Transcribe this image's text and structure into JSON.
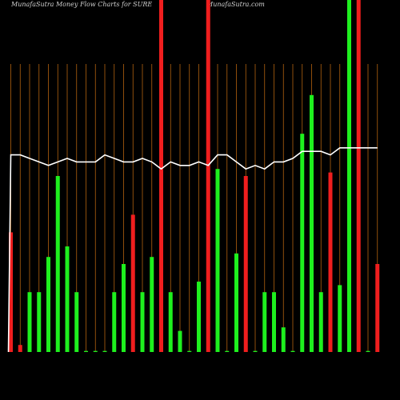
{
  "header": {
    "title": "MunafaSutra  Money Flow  Charts for SURE",
    "site": "MunafaSutra.com"
  },
  "colors": {
    "background": "#000000",
    "grid": "#b3620f",
    "up": "#1ef01e",
    "down": "#f01e1e",
    "line": "#ffffff"
  },
  "chart_data": {
    "type": "bar",
    "title": "MunafaSutra  Money Flow  Charts for SURE",
    "xlabel": "",
    "ylabel": "",
    "ylim": [
      0,
      100
    ],
    "grid": true,
    "legend": "none",
    "series": [
      {
        "values": [
          34,
          2,
          17,
          17,
          27,
          50,
          30,
          17,
          0.3,
          0.3,
          0.3,
          17,
          25,
          39,
          17,
          27,
          100,
          17,
          6,
          0.3,
          20,
          100,
          52,
          0.3,
          28,
          50,
          0.3,
          17,
          17,
          7,
          0.3,
          62,
          73,
          17,
          51,
          19,
          100,
          100,
          0.3,
          25
        ],
        "direction": [
          "down",
          "down",
          "up",
          "up",
          "up",
          "up",
          "up",
          "up",
          "up",
          "up",
          "up",
          "up",
          "up",
          "down",
          "up",
          "up",
          "down",
          "up",
          "up",
          "up",
          "up",
          "down",
          "up",
          "up",
          "up",
          "down",
          "up",
          "up",
          "up",
          "up",
          "up",
          "up",
          "up",
          "up",
          "down",
          "up",
          "up",
          "down",
          "up",
          "down"
        ]
      },
      {
        "values": [
          56,
          56,
          55,
          54,
          53,
          54,
          55,
          54,
          54,
          54,
          56,
          55,
          54,
          54,
          55,
          54,
          52,
          54,
          53,
          53,
          54,
          53,
          56,
          56,
          54,
          52,
          53,
          52,
          54,
          54,
          55,
          57,
          57,
          57,
          56,
          58,
          58,
          58,
          58,
          58
        ]
      }
    ]
  }
}
